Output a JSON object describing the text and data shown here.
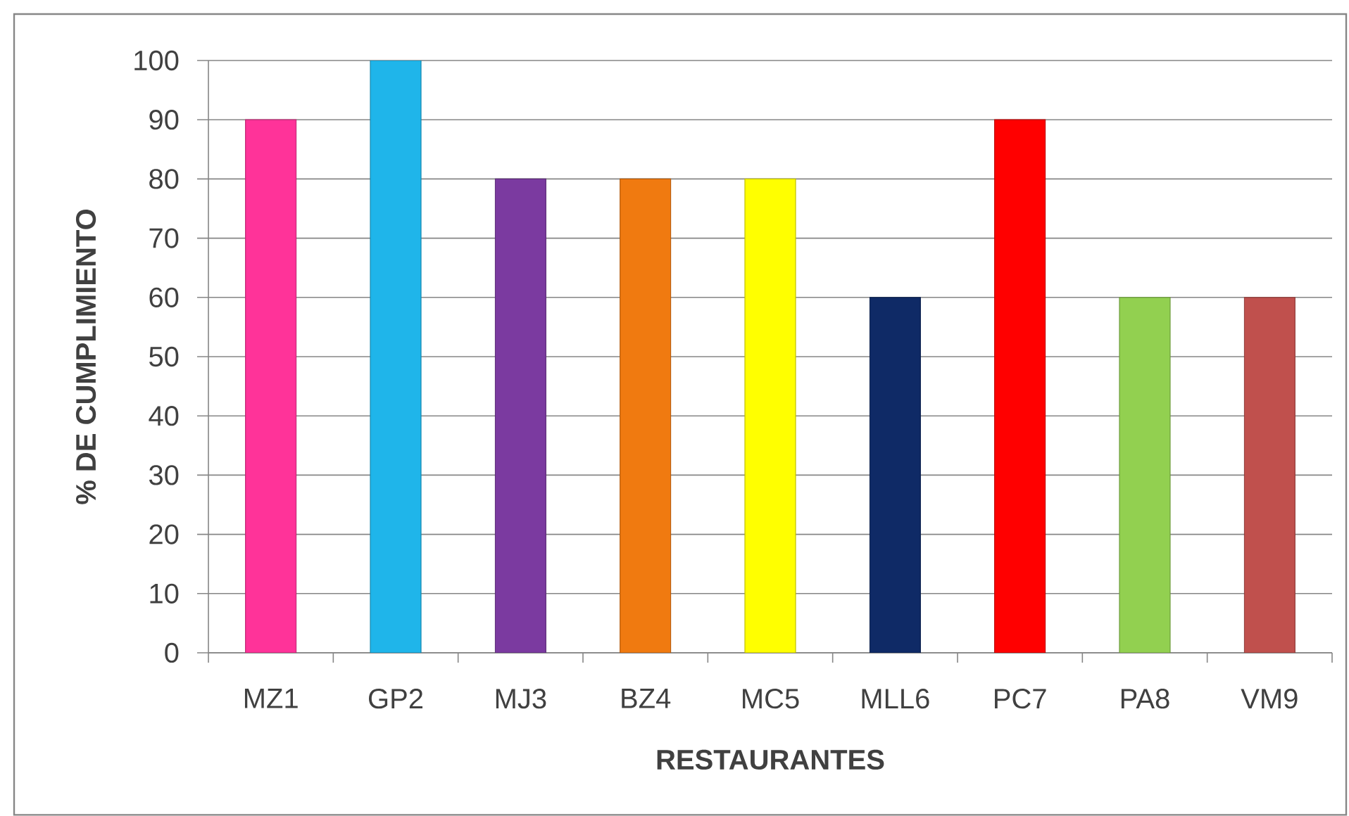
{
  "chart_data": {
    "type": "bar",
    "xlabel": "RESTAURANTES",
    "ylabel": "% DE CUMPLIMIENTO",
    "categories": [
      "MZ1",
      "GP2",
      "MJ3",
      "BZ4",
      "MC5",
      "MLL6",
      "PC7",
      "PA8",
      "VM9"
    ],
    "values": [
      90,
      100,
      80,
      80,
      80,
      60,
      90,
      60,
      60
    ],
    "colors": [
      "#ff3399",
      "#1fb5ea",
      "#7b3aa0",
      "#f07a10",
      "#ffff00",
      "#0f2a66",
      "#ff0000",
      "#92d050",
      "#c0504d"
    ],
    "ylim": [
      0,
      100
    ],
    "yticks": [
      0,
      10,
      20,
      30,
      40,
      50,
      60,
      70,
      80,
      90,
      100
    ],
    "grid": "y"
  }
}
